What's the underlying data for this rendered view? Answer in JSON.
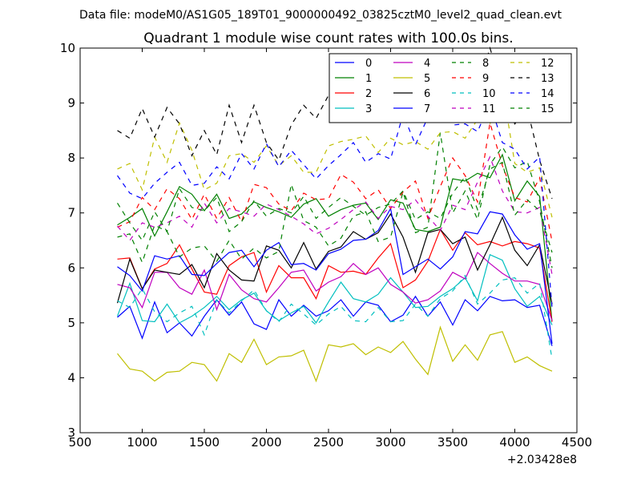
{
  "chart_data": {
    "type": "line",
    "suptitle": "Data file: modeM0/AS1G05_189T01_9000000492_03825cztM0_level2_quad_clean.evt",
    "title": "Quadrant 1 module wise count rates with 100.0s bins.",
    "xlabel": "",
    "ylabel": "",
    "x_offset_label": "+2.03428e8",
    "xlim": [
      500,
      4500
    ],
    "ylim": [
      3,
      10
    ],
    "xticks": [
      500,
      1000,
      1500,
      2000,
      2500,
      3000,
      3500,
      4000,
      4500
    ],
    "yticks": [
      3,
      4,
      5,
      6,
      7,
      8,
      9,
      10
    ],
    "grid": false,
    "legend": {
      "placement": "top-right",
      "columns": 4
    },
    "x": [
      800,
      900,
      1000,
      1100,
      1200,
      1300,
      1400,
      1500,
      1600,
      1700,
      1800,
      1900,
      2000,
      2100,
      2200,
      2300,
      2400,
      2500,
      2600,
      2700,
      2800,
      2900,
      3000,
      3100,
      3200,
      3300,
      3400,
      3500,
      3600,
      3700,
      3800,
      3900,
      4000,
      4100,
      4200,
      4300
    ],
    "series": [
      {
        "name": "0",
        "color": "#0000ff",
        "dash": "solid",
        "values": [
          5.1,
          5.3,
          4.72,
          5.38,
          4.82,
          5.0,
          4.76,
          5.12,
          5.42,
          5.14,
          5.38,
          4.98,
          4.88,
          5.42,
          5.12,
          5.32,
          5.12,
          5.22,
          5.42,
          5.12,
          5.38,
          5.32,
          5.02,
          5.14,
          5.48,
          5.12,
          5.38,
          4.96,
          5.42,
          5.22,
          5.48,
          5.4,
          5.42,
          5.28,
          5.32,
          4.58
        ]
      },
      {
        "name": "1",
        "color": "#008000",
        "dash": "solid",
        "values": [
          6.78,
          6.92,
          7.08,
          6.58,
          7.02,
          7.48,
          7.34,
          7.04,
          7.34,
          6.9,
          6.98,
          7.2,
          7.1,
          7.02,
          6.92,
          7.16,
          7.26,
          6.94,
          7.06,
          7.14,
          7.18,
          6.88,
          7.24,
          7.18,
          6.7,
          6.66,
          6.74,
          7.62,
          7.58,
          7.72,
          7.64,
          8.06,
          7.22,
          7.58,
          7.3,
          5.02
        ]
      },
      {
        "name": "2",
        "color": "#ff0000",
        "dash": "solid",
        "values": [
          6.16,
          6.18,
          5.62,
          5.98,
          6.08,
          6.42,
          5.98,
          5.56,
          5.52,
          6.04,
          6.2,
          6.28,
          5.56,
          6.04,
          5.82,
          5.82,
          5.44,
          6.04,
          5.92,
          5.94,
          5.88,
          6.18,
          6.44,
          5.64,
          5.78,
          6.12,
          6.7,
          6.32,
          6.64,
          6.42,
          6.48,
          6.4,
          6.48,
          6.44,
          6.36,
          5.02
        ]
      },
      {
        "name": "3",
        "color": "#00bfbf",
        "dash": "solid",
        "values": [
          5.12,
          5.72,
          5.04,
          5.02,
          5.34,
          5.0,
          5.12,
          5.28,
          5.48,
          5.24,
          5.42,
          5.54,
          5.22,
          5.04,
          5.18,
          5.3,
          5.0,
          5.38,
          5.74,
          5.44,
          5.38,
          5.52,
          5.82,
          5.56,
          5.28,
          5.3,
          5.48,
          5.62,
          5.82,
          5.4,
          6.24,
          6.14,
          5.62,
          5.3,
          5.48,
          4.96
        ]
      },
      {
        "name": "4",
        "color": "#bf00bf",
        "dash": "solid",
        "values": [
          5.7,
          5.64,
          5.28,
          5.92,
          5.92,
          5.64,
          5.52,
          5.96,
          5.24,
          5.88,
          5.6,
          5.44,
          5.38,
          5.64,
          5.92,
          5.96,
          5.58,
          5.74,
          5.84,
          6.08,
          5.88,
          6.0,
          5.7,
          5.56,
          5.36,
          5.42,
          5.58,
          5.92,
          5.8,
          6.28,
          6.08,
          5.9,
          5.76,
          5.76,
          5.7,
          5.04
        ]
      },
      {
        "name": "5",
        "color": "#bfbf00",
        "dash": "solid",
        "values": [
          4.44,
          4.16,
          4.12,
          3.94,
          4.1,
          4.12,
          4.28,
          4.24,
          3.94,
          4.44,
          4.28,
          4.7,
          4.24,
          4.38,
          4.4,
          4.5,
          3.94,
          4.6,
          4.56,
          4.62,
          4.42,
          4.56,
          4.46,
          4.66,
          4.34,
          4.06,
          4.92,
          4.3,
          4.6,
          4.32,
          4.78,
          4.84,
          4.28,
          4.38,
          4.22,
          4.12
        ]
      },
      {
        "name": "6",
        "color": "#000000",
        "dash": "solid",
        "values": [
          5.36,
          6.16,
          5.62,
          5.96,
          5.92,
          5.88,
          6.06,
          5.64,
          6.26,
          5.96,
          5.78,
          5.76,
          6.4,
          6.32,
          6.0,
          6.46,
          5.98,
          6.3,
          6.38,
          6.66,
          6.52,
          6.64,
          6.98,
          6.56,
          5.92,
          6.64,
          6.7,
          6.44,
          6.56,
          5.96,
          6.42,
          6.92,
          6.32,
          6.04,
          6.42,
          5.34
        ]
      },
      {
        "name": "7",
        "color": "#0000ff",
        "dash": "solid",
        "values": [
          6.02,
          5.86,
          5.58,
          6.22,
          6.16,
          6.22,
          5.88,
          5.86,
          6.08,
          6.28,
          6.32,
          6.02,
          6.32,
          6.46,
          6.06,
          6.08,
          5.96,
          6.26,
          6.34,
          6.5,
          6.52,
          6.68,
          7.08,
          5.88,
          6.02,
          6.16,
          5.98,
          6.2,
          6.66,
          6.62,
          7.02,
          6.98,
          6.6,
          6.34,
          6.44,
          4.62
        ]
      },
      {
        "name": "8",
        "color": "#008000",
        "dash": "dashed",
        "values": [
          6.56,
          6.62,
          6.1,
          6.78,
          6.66,
          6.2,
          6.36,
          6.4,
          6.12,
          6.5,
          6.16,
          6.36,
          6.18,
          6.3,
          7.52,
          6.86,
          6.74,
          6.4,
          6.54,
          6.94,
          7.02,
          6.48,
          6.56,
          7.38,
          6.64,
          6.74,
          8.46,
          7.0,
          7.4,
          6.88,
          7.88,
          8.2,
          7.82,
          7.94,
          7.2,
          6.0
        ]
      },
      {
        "name": "9",
        "color": "#ff0000",
        "dash": "dashed",
        "values": [
          6.74,
          6.84,
          7.28,
          7.06,
          7.44,
          7.26,
          6.88,
          7.34,
          6.9,
          7.28,
          6.84,
          7.52,
          7.46,
          7.16,
          7.04,
          7.36,
          7.24,
          7.26,
          7.7,
          7.56,
          7.26,
          7.42,
          7.08,
          7.38,
          7.58,
          6.9,
          7.48,
          8.0,
          7.68,
          7.2,
          8.64,
          7.86,
          7.28,
          7.2,
          7.64,
          6.48
        ]
      },
      {
        "name": "10",
        "color": "#00bfbf",
        "dash": "dashed",
        "values": [
          5.4,
          5.28,
          5.62,
          5.2,
          5.02,
          5.18,
          5.3,
          4.78,
          5.42,
          5.18,
          5.4,
          5.6,
          5.22,
          5.02,
          5.34,
          5.16,
          4.96,
          5.16,
          5.3,
          5.04,
          5.02,
          5.28,
          5.02,
          5.04,
          5.34,
          5.12,
          5.44,
          5.58,
          5.86,
          5.34,
          5.54,
          5.78,
          5.82,
          5.54,
          5.72,
          4.34
        ]
      },
      {
        "name": "11",
        "color": "#bf00bf",
        "dash": "dashed",
        "values": [
          6.76,
          6.5,
          6.82,
          6.74,
          6.82,
          6.94,
          6.74,
          7.18,
          6.82,
          7.08,
          7.02,
          6.94,
          7.16,
          7.06,
          6.94,
          6.8,
          6.62,
          6.72,
          6.88,
          7.06,
          7.2,
          6.9,
          7.12,
          7.06,
          7.24,
          6.94,
          6.68,
          7.14,
          7.06,
          7.56,
          8.02,
          7.4,
          7.02,
          7.0,
          7.1,
          5.88
        ]
      },
      {
        "name": "12",
        "color": "#bfbf00",
        "dash": "dashed",
        "values": [
          7.8,
          7.9,
          7.42,
          8.38,
          7.92,
          8.64,
          8.14,
          7.42,
          7.54,
          8.04,
          8.08,
          7.92,
          8.22,
          7.86,
          8.04,
          7.74,
          7.74,
          8.22,
          8.3,
          8.34,
          8.4,
          8.1,
          8.36,
          8.24,
          8.3,
          8.16,
          8.46,
          8.48,
          8.36,
          8.7,
          8.62,
          9.3,
          7.9,
          7.74,
          7.82,
          6.92
        ]
      },
      {
        "name": "13",
        "color": "#000000",
        "dash": "dashed",
        "values": [
          8.5,
          8.36,
          8.9,
          8.38,
          8.92,
          8.62,
          8.04,
          8.5,
          8.06,
          8.96,
          8.28,
          8.96,
          8.28,
          7.96,
          8.6,
          8.96,
          8.72,
          9.14,
          8.92,
          9.08,
          8.9,
          9.04,
          9.36,
          9.0,
          9.2,
          8.86,
          9.36,
          9.12,
          9.18,
          9.28,
          10.0,
          9.28,
          8.62,
          8.9,
          7.96,
          7.26
        ]
      },
      {
        "name": "14",
        "color": "#0000ff",
        "dash": "dashed",
        "values": [
          7.68,
          7.36,
          7.26,
          7.54,
          7.74,
          7.92,
          7.5,
          7.54,
          7.84,
          7.62,
          8.08,
          7.8,
          8.26,
          7.84,
          8.14,
          7.88,
          7.62,
          7.86,
          8.06,
          8.28,
          7.92,
          8.08,
          7.98,
          8.8,
          8.24,
          8.74,
          8.9,
          8.6,
          8.62,
          8.48,
          9.0,
          8.28,
          8.16,
          7.8,
          8.02,
          5.28
        ]
      },
      {
        "name": "15",
        "color": "#008000",
        "dash": "dashed",
        "values": [
          7.18,
          6.82,
          6.5,
          7.02,
          6.66,
          7.44,
          7.1,
          7.04,
          7.28,
          6.66,
          6.84,
          7.22,
          6.94,
          7.08,
          7.0,
          7.3,
          6.9,
          7.1,
          7.28,
          7.12,
          6.96,
          7.1,
          7.16,
          7.4,
          6.88,
          7.02,
          6.9,
          7.36,
          7.66,
          7.06,
          7.8,
          7.92,
          6.96,
          7.24,
          7.04,
          6.28
        ]
      }
    ]
  }
}
